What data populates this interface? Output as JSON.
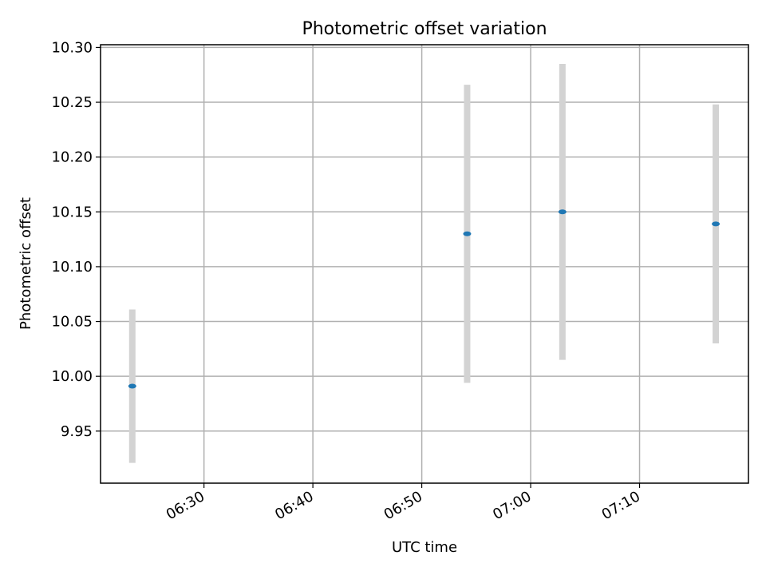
{
  "chart_data": {
    "type": "scatter",
    "title": "Photometric offset variation",
    "xlabel": "UTC time",
    "ylabel": "Photometric offset",
    "x_axis_type": "time",
    "xlim": [
      "06:20:30",
      "07:20:00"
    ],
    "ylim": [
      9.9025,
      10.3025
    ],
    "x_ticks": [
      "06:30",
      "06:40",
      "06:50",
      "07:00",
      "07:10"
    ],
    "y_ticks": [
      "9.95",
      "10.00",
      "10.05",
      "10.10",
      "10.15",
      "10.20",
      "10.25",
      "10.30"
    ],
    "grid": true,
    "series": [
      {
        "marker_color": "#1f77b4",
        "errorbar_color": "#d3d3d3",
        "points": [
          {
            "x": "06:23:25",
            "y": 9.991,
            "yerr": 0.07
          },
          {
            "x": "06:54:10",
            "y": 10.13,
            "yerr": 0.136
          },
          {
            "x": "07:02:55",
            "y": 10.15,
            "yerr": 0.135
          },
          {
            "x": "07:17:00",
            "y": 10.139,
            "yerr": 0.109
          }
        ]
      }
    ]
  }
}
